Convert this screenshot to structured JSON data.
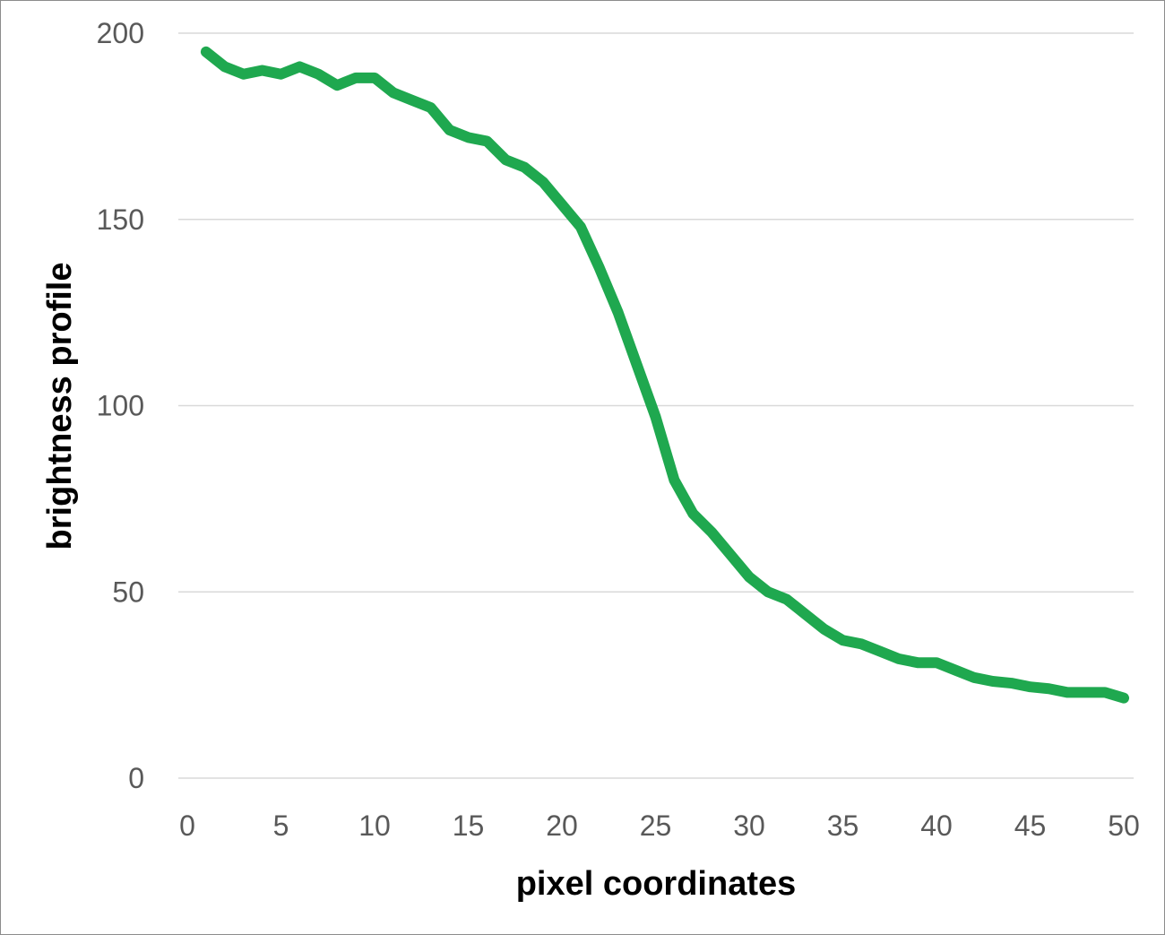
{
  "chart_data": {
    "type": "line",
    "title": "",
    "xlabel": "pixel coordinates",
    "ylabel": "brightness profile",
    "xlim": [
      0,
      50
    ],
    "ylim": [
      0,
      200
    ],
    "xticks": [
      0,
      5,
      10,
      15,
      20,
      25,
      30,
      35,
      40,
      45,
      50
    ],
    "yticks": [
      0,
      50,
      100,
      150,
      200
    ],
    "grid": "horizontal",
    "legend": "none",
    "series": [
      {
        "name": "brightness profile",
        "color": "#1fa84f",
        "x": [
          1,
          2,
          3,
          4,
          5,
          6,
          7,
          8,
          9,
          10,
          11,
          12,
          13,
          14,
          15,
          16,
          17,
          18,
          19,
          20,
          21,
          22,
          23,
          24,
          25,
          26,
          27,
          28,
          29,
          30,
          31,
          32,
          33,
          34,
          35,
          36,
          37,
          38,
          39,
          40,
          41,
          42,
          43,
          44,
          45,
          46,
          47,
          48,
          49,
          50
        ],
        "values": [
          195,
          191,
          189,
          190,
          189,
          191,
          189,
          186,
          188,
          188,
          184,
          182,
          180,
          174,
          172,
          171,
          166,
          164,
          160,
          154,
          148,
          137,
          125,
          111,
          97,
          80,
          71,
          66,
          60,
          54,
          50,
          48,
          44,
          40,
          37,
          36,
          34,
          32,
          31,
          31,
          29,
          27,
          26,
          25.5,
          24.5,
          24,
          23,
          23,
          23,
          21.5
        ]
      }
    ]
  }
}
